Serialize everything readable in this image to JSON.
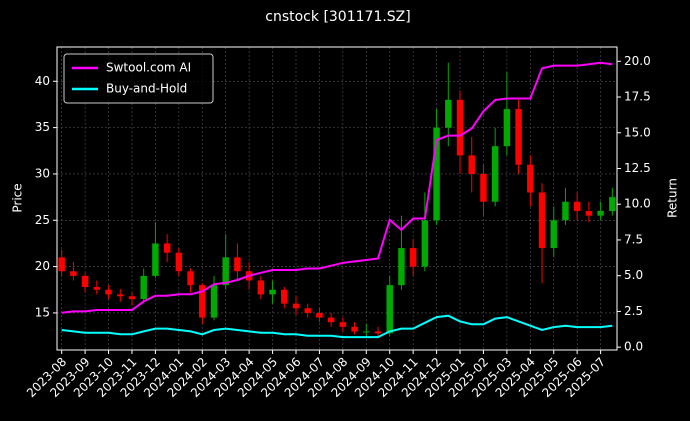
{
  "chart_data": {
    "type": "candlestick",
    "title": "cnstock [301171.SZ]",
    "ylabel": "Price",
    "y2label": "Return",
    "x": [
      0,
      0.5,
      1,
      1.5,
      2,
      2.5,
      3,
      3.5,
      4,
      4.5,
      5,
      5.5,
      6,
      6.5,
      7,
      7.5,
      8,
      8.5,
      9,
      9.5,
      10,
      10.5,
      11,
      11.5,
      12,
      12.5,
      13,
      13.5,
      14,
      14.5,
      15,
      15.5,
      16,
      16.5,
      17,
      17.5,
      18,
      18.5,
      19,
      19.5,
      20,
      20.5,
      21,
      21.5,
      22,
      22.5,
      23,
      23.5
    ],
    "open": [
      21,
      19.5,
      19,
      17.8,
      17.5,
      17,
      16.8,
      16.5,
      19,
      22.5,
      21.5,
      19.5,
      18,
      14.5,
      18,
      21,
      19.5,
      18.5,
      17,
      17.5,
      16,
      15.5,
      15,
      14.5,
      14,
      13.5,
      13,
      13,
      12.8,
      18,
      22,
      20,
      25,
      35,
      38,
      32,
      30,
      27,
      33,
      37,
      31,
      28,
      22,
      25,
      27,
      26,
      25.5,
      26
    ],
    "high": [
      21.8,
      20.5,
      19.3,
      18.5,
      18,
      17.6,
      17.2,
      19.8,
      24.8,
      23.5,
      22,
      19.8,
      18.2,
      19,
      23.5,
      22.5,
      20.5,
      19,
      18.5,
      17.8,
      16.8,
      16,
      15.5,
      15,
      14.5,
      14,
      13.8,
      13.5,
      19,
      25.5,
      23,
      28,
      37,
      42,
      39,
      34,
      31,
      35,
      41,
      38,
      32,
      29,
      26.5,
      28.5,
      28,
      27,
      27,
      28.5
    ],
    "low": [
      19,
      18.5,
      17.2,
      17,
      16.5,
      16.2,
      15.8,
      16.2,
      18.8,
      20.5,
      19,
      17.2,
      13.8,
      14.2,
      17.5,
      18.5,
      17.5,
      16.5,
      16,
      15.5,
      14.8,
      14.5,
      14,
      13.5,
      13,
      12.7,
      12.5,
      12.3,
      12.5,
      17.5,
      19,
      19.5,
      24.5,
      33,
      30,
      28,
      25.5,
      26.5,
      32,
      30,
      26.5,
      18.2,
      21,
      24.5,
      25,
      24.8,
      25,
      25.5
    ],
    "close": [
      19.5,
      19,
      17.8,
      17.5,
      17,
      16.8,
      16.5,
      19,
      22.5,
      21.5,
      19.5,
      18,
      14.5,
      18,
      21,
      19.5,
      18.5,
      17,
      17.5,
      16,
      15.5,
      15,
      14.5,
      14,
      13.5,
      13,
      13,
      12.8,
      18,
      22,
      20,
      25,
      35,
      38,
      32,
      30,
      27,
      33,
      37,
      31,
      28,
      22,
      25,
      27,
      26,
      25.5,
      26,
      27.5
    ],
    "up_color": "#00aa00",
    "down_color": "#ff0000",
    "series": [
      {
        "name": "Swtool.com AI",
        "color": "#ff00ff",
        "axis": "y2",
        "values": [
          2.4,
          2.5,
          2.5,
          2.6,
          2.6,
          2.6,
          2.6,
          3.2,
          3.6,
          3.6,
          3.7,
          3.7,
          3.9,
          4.4,
          4.5,
          4.7,
          5.0,
          5.2,
          5.4,
          5.4,
          5.4,
          5.5,
          5.5,
          5.7,
          5.9,
          6.0,
          6.1,
          6.2,
          8.9,
          8.2,
          9.0,
          9.0,
          14.5,
          14.8,
          14.8,
          15.3,
          16.5,
          17.3,
          17.4,
          17.4,
          17.4,
          19.5,
          19.7,
          19.7,
          19.7,
          19.8,
          19.9,
          19.8
        ]
      },
      {
        "name": "Buy-and-Hold",
        "color": "#00ffff",
        "axis": "y2",
        "values": [
          1.2,
          1.1,
          1.0,
          1.0,
          1.0,
          0.9,
          0.9,
          1.1,
          1.3,
          1.3,
          1.2,
          1.1,
          0.9,
          1.2,
          1.3,
          1.2,
          1.1,
          1.0,
          1.0,
          0.9,
          0.9,
          0.8,
          0.8,
          0.8,
          0.7,
          0.7,
          0.7,
          0.7,
          1.1,
          1.3,
          1.3,
          1.7,
          2.1,
          2.2,
          1.8,
          1.6,
          1.6,
          2.0,
          2.1,
          1.8,
          1.5,
          1.2,
          1.4,
          1.5,
          1.4,
          1.4,
          1.4,
          1.5
        ]
      }
    ],
    "xlim": [
      -0.2,
      23.7
    ],
    "xticks": [
      {
        "value": 0,
        "label": "2023-08"
      },
      {
        "value": 1,
        "label": "2023-09"
      },
      {
        "value": 2,
        "label": "2023-10"
      },
      {
        "value": 3,
        "label": "2023-11"
      },
      {
        "value": 4,
        "label": "2023-12"
      },
      {
        "value": 5,
        "label": "2024-01"
      },
      {
        "value": 6,
        "label": "2024-02"
      },
      {
        "value": 7,
        "label": "2024-03"
      },
      {
        "value": 8,
        "label": "2024-04"
      },
      {
        "value": 9,
        "label": "2024-05"
      },
      {
        "value": 10,
        "label": "2024-06"
      },
      {
        "value": 11,
        "label": "2024-07"
      },
      {
        "value": 12,
        "label": "2024-08"
      },
      {
        "value": 13,
        "label": "2024-09"
      },
      {
        "value": 14,
        "label": "2024-10"
      },
      {
        "value": 15,
        "label": "2024-11"
      },
      {
        "value": 16,
        "label": "2024-12"
      },
      {
        "value": 17,
        "label": "2025-01"
      },
      {
        "value": 18,
        "label": "2025-02"
      },
      {
        "value": 19,
        "label": "2025-03"
      },
      {
        "value": 20,
        "label": "2025-04"
      },
      {
        "value": 21,
        "label": "2025-05"
      },
      {
        "value": 22,
        "label": "2025-06"
      },
      {
        "value": 23,
        "label": "2025-07"
      }
    ],
    "ylim": [
      11.0,
      43.7
    ],
    "yticks": [
      15,
      20,
      25,
      30,
      35,
      40
    ],
    "y2lim": [
      -0.2,
      21.0
    ],
    "y2ticks": [
      {
        "value": 0,
        "label": "0.0"
      },
      2.5,
      {
        "value": 5,
        "label": "5.0"
      },
      7.5,
      {
        "value": 10,
        "label": "10.0"
      },
      12.5,
      {
        "value": 15,
        "label": "15.0"
      },
      17.5,
      {
        "value": 20,
        "label": "20.0"
      }
    ],
    "grid": true,
    "legend": "upper left"
  }
}
